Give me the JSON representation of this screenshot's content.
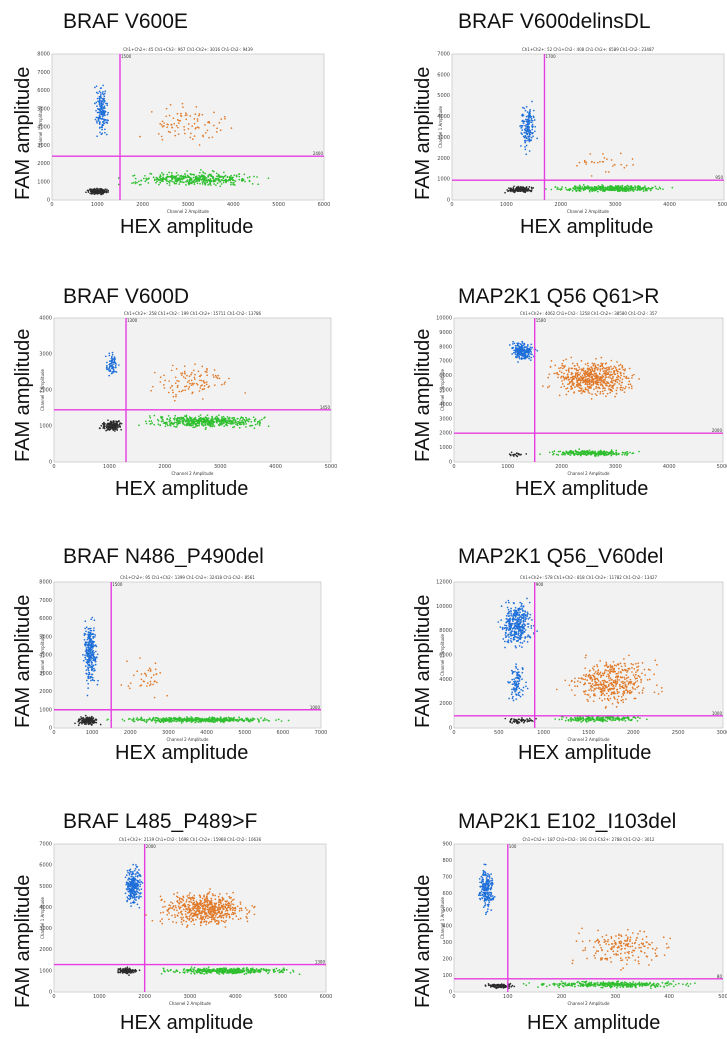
{
  "colors": {
    "double_neg": "#2b2b2b",
    "fam_pos": "#1e6fd9",
    "hex_pos": "#2fbf2f",
    "double_pos": "#e07a2a",
    "threshold": "#e63ce0",
    "plot_bg": "#f2f2f2"
  },
  "chart_data": [
    {
      "type": "scatter",
      "title": "BRAF V600E",
      "xlabel": "HEX amplitude",
      "ylabel": "FAM amplitude",
      "inner_header": "Ch1+Ch2+: 45  Ch1+Ch2-: 967  Ch1-Ch2+: 3016  Ch1-Ch2-: 9439",
      "inner_xlabel": "Channel 2 Amplitude",
      "inner_ylabel": "Channel 1 Amplitude",
      "xlim": [
        0,
        6000
      ],
      "ylim": [
        0,
        8000
      ],
      "xticks": [
        0,
        1000,
        2000,
        3000,
        4000,
        5000,
        6000
      ],
      "yticks": [
        0,
        1000,
        2000,
        3000,
        4000,
        5000,
        6000,
        7000,
        8000
      ],
      "ythreshold": 2400,
      "xthreshold": 1500,
      "ythreshold_label": "2400",
      "xthreshold_label": "1500",
      "clusters": [
        {
          "name": "Ch1-Ch2-",
          "color": "double_neg",
          "x": [
            700,
            1300
          ],
          "y": [
            250,
            700
          ],
          "n": 160
        },
        {
          "name": "Ch1+Ch2-",
          "color": "fam_pos",
          "x": [
            900,
            1300
          ],
          "y": [
            3000,
            6800
          ],
          "n": 160
        },
        {
          "name": "Ch1-Ch2+",
          "color": "hex_pos",
          "x": [
            1300,
            5000
          ],
          "y": [
            600,
            1700
          ],
          "n": 420
        },
        {
          "name": "Ch1+Ch2+",
          "color": "double_pos",
          "x": [
            1800,
            4200
          ],
          "y": [
            2800,
            5500
          ],
          "n": 90
        }
      ]
    },
    {
      "type": "scatter",
      "title": "BRAF V600delinsDL",
      "xlabel": "HEX amplitude",
      "ylabel": "FAM amplitude",
      "inner_header": "Ch1+Ch2+: 52  Ch1+Ch2-: 408  Ch1-Ch2+: 6589  Ch1-Ch2-: 23487",
      "inner_xlabel": "Channel 2 Amplitude",
      "inner_ylabel": "Channel 1 Amplitude",
      "xlim": [
        0,
        5000
      ],
      "ylim": [
        0,
        7000
      ],
      "xticks": [
        0,
        1000,
        2000,
        3000,
        4000,
        5000
      ],
      "yticks": [
        0,
        1000,
        2000,
        3000,
        4000,
        5000,
        6000,
        7000
      ],
      "ythreshold": 950,
      "xthreshold": 1700,
      "ythreshold_label": "950",
      "xthreshold_label": "1700",
      "clusters": [
        {
          "name": "Ch1-Ch2-",
          "color": "double_neg",
          "x": [
            900,
            1600
          ],
          "y": [
            300,
            700
          ],
          "n": 150
        },
        {
          "name": "Ch1+Ch2-",
          "color": "fam_pos",
          "x": [
            1200,
            1600
          ],
          "y": [
            2000,
            5000
          ],
          "n": 150
        },
        {
          "name": "Ch1-Ch2+",
          "color": "hex_pos",
          "x": [
            1600,
            4200
          ],
          "y": [
            350,
            750
          ],
          "n": 420
        },
        {
          "name": "Ch1+Ch2+",
          "color": "double_pos",
          "x": [
            1900,
            3600
          ],
          "y": [
            1000,
            2500
          ],
          "n": 30
        }
      ]
    },
    {
      "type": "scatter",
      "title": "BRAF V600D",
      "xlabel": "HEX amplitude",
      "ylabel": "FAM amplitude",
      "inner_header": "Ch1+Ch2+: 258  Ch1+Ch2-: 199  Ch1-Ch2+: 15711  Ch1-Ch2-: 13786",
      "inner_xlabel": "Channel 2 Amplitude",
      "inner_ylabel": "Channel 1 Amplitude",
      "xlim": [
        0,
        5000
      ],
      "ylim": [
        0,
        4000
      ],
      "xticks": [
        0,
        1000,
        2000,
        3000,
        4000,
        5000
      ],
      "yticks": [
        0,
        1000,
        2000,
        3000,
        4000
      ],
      "ythreshold": 1450,
      "xthreshold": 1300,
      "ythreshold_label": "1450",
      "xthreshold_label": "1300",
      "clusters": [
        {
          "name": "Ch1-Ch2-",
          "color": "double_neg",
          "x": [
            800,
            1300
          ],
          "y": [
            800,
            1200
          ],
          "n": 160
        },
        {
          "name": "Ch1+Ch2-",
          "color": "fam_pos",
          "x": [
            900,
            1200
          ],
          "y": [
            2200,
            3200
          ],
          "n": 70
        },
        {
          "name": "Ch1-Ch2+",
          "color": "hex_pos",
          "x": [
            1300,
            4200
          ],
          "y": [
            900,
            1350
          ],
          "n": 500
        },
        {
          "name": "Ch1+Ch2+",
          "color": "double_pos",
          "x": [
            1500,
            3500
          ],
          "y": [
            1500,
            3000
          ],
          "n": 110
        }
      ]
    },
    {
      "type": "scatter",
      "title": "MAP2K1 Q56  Q61>R",
      "xlabel": "HEX amplitude",
      "ylabel": "FAM amplitude",
      "inner_header": "Ch1+Ch2+: 4062  Ch1+Ch2-: 1258  Ch1-Ch2+: 38580  Ch1-Ch2-: 357",
      "inner_xlabel": "Channel 2 Amplitude",
      "inner_ylabel": "Channel 1 Amplitude",
      "xlim": [
        0,
        5000
      ],
      "ylim": [
        0,
        10000
      ],
      "xticks": [
        0,
        1000,
        2000,
        3000,
        4000,
        5000
      ],
      "yticks": [
        0,
        1000,
        2000,
        3000,
        4000,
        5000,
        6000,
        7000,
        8000,
        9000,
        10000
      ],
      "ythreshold": 2000,
      "xthreshold": 1500,
      "ythreshold_label": "2000",
      "xthreshold_label": "1500",
      "clusters": [
        {
          "name": "Ch1+Ch2-",
          "color": "fam_pos",
          "x": [
            1000,
            1550
          ],
          "y": [
            6800,
            8600
          ],
          "n": 220
        },
        {
          "name": "Ch1+Ch2+",
          "color": "double_pos",
          "x": [
            1550,
            3600
          ],
          "y": [
            4200,
            7600
          ],
          "n": 600
        },
        {
          "name": "Ch1-Ch2+",
          "color": "hex_pos",
          "x": [
            1500,
            3600
          ],
          "y": [
            350,
            900
          ],
          "n": 280
        },
        {
          "name": "Ch1-Ch2-",
          "color": "double_neg",
          "x": [
            900,
            1400
          ],
          "y": [
            300,
            700
          ],
          "n": 20
        }
      ]
    },
    {
      "type": "scatter",
      "title": "BRAF N486_P490del",
      "xlabel": "HEX amplitude",
      "ylabel": "FAM amplitude",
      "inner_header": "Ch1+Ch2+: 95  Ch1+Ch2-: 1399  Ch1-Ch2+: 32418  Ch1-Ch2-: 8561",
      "inner_xlabel": "Channel 2 Amplitude",
      "inner_ylabel": "Channel 1 Amplitude",
      "xlim": [
        0,
        7000
      ],
      "ylim": [
        0,
        8000
      ],
      "xticks": [
        0,
        1000,
        2000,
        3000,
        4000,
        5000,
        6000,
        7000
      ],
      "yticks": [
        0,
        1000,
        2000,
        3000,
        4000,
        5000,
        6000,
        7000,
        8000
      ],
      "ythreshold": 1000,
      "xthreshold": 1500,
      "ythreshold_label": "1000",
      "xthreshold_label": "1500",
      "clusters": [
        {
          "name": "Ch1-Ch2-",
          "color": "double_neg",
          "x": [
            500,
            1300
          ],
          "y": [
            100,
            700
          ],
          "n": 160
        },
        {
          "name": "Ch1+Ch2-",
          "color": "fam_pos",
          "x": [
            700,
            1200
          ],
          "y": [
            1500,
            6800
          ],
          "n": 260
        },
        {
          "name": "Ch1-Ch2+",
          "color": "hex_pos",
          "x": [
            1000,
            6600
          ],
          "y": [
            250,
            650
          ],
          "n": 500
        },
        {
          "name": "Ch1+Ch2+",
          "color": "double_pos",
          "x": [
            1600,
            3200
          ],
          "y": [
            1300,
            4200
          ],
          "n": 40
        }
      ]
    },
    {
      "type": "scatter",
      "title": "MAP2K1 Q56_V60del",
      "xlabel": "HEX amplitude",
      "ylabel": "FAM amplitude",
      "inner_header": "Ch1+Ch2+: 578  Ch1+Ch2-: 818  Ch1-Ch2+: 11782  Ch1-Ch2-: 13427",
      "inner_xlabel": "Channel 2 Amplitude",
      "inner_ylabel": "Channel 1 Amplitude",
      "xlim": [
        0,
        3000
      ],
      "ylim": [
        0,
        12000
      ],
      "xticks": [
        0,
        500,
        1000,
        1500,
        2000,
        2500,
        3000
      ],
      "yticks": [
        0,
        2000,
        4000,
        6000,
        8000,
        10000,
        12000
      ],
      "ythreshold": 1000,
      "xthreshold": 900,
      "ythreshold_label": "1000",
      "xthreshold_label": "900",
      "clusters": [
        {
          "name": "Ch1+Ch2-",
          "color": "fam_pos",
          "x": [
            450,
            950
          ],
          "y": [
            6000,
            11000
          ],
          "n": 350
        },
        {
          "name": "Ch1+Ch2-",
          "color": "fam_pos",
          "x": [
            550,
            850
          ],
          "y": [
            1500,
            6000
          ],
          "n": 100
        },
        {
          "name": "Ch1+Ch2+",
          "color": "double_pos",
          "x": [
            1100,
            2400
          ],
          "y": [
            1200,
            6500
          ],
          "n": 420
        },
        {
          "name": "Ch1-Ch2+",
          "color": "hex_pos",
          "x": [
            950,
            2300
          ],
          "y": [
            400,
            1100
          ],
          "n": 200
        },
        {
          "name": "Ch1-Ch2-",
          "color": "double_neg",
          "x": [
            500,
            950
          ],
          "y": [
            300,
            900
          ],
          "n": 60
        }
      ]
    },
    {
      "type": "scatter",
      "title": "BRAF L485_P489>F",
      "xlabel": "HEX amplitude",
      "ylabel": "FAM amplitude",
      "inner_header": "Ch1+Ch2+: 2139  Ch1+Ch2-: 1698  Ch1-Ch2+: 15968  Ch1-Ch2-: 10636",
      "inner_xlabel": "Channel 2 Amplitude",
      "inner_ylabel": "Channel 1 Amplitude",
      "xlim": [
        0,
        6000
      ],
      "ylim": [
        0,
        7000
      ],
      "xticks": [
        0,
        1000,
        2000,
        3000,
        4000,
        5000,
        6000
      ],
      "yticks": [
        0,
        1000,
        2000,
        3000,
        4000,
        5000,
        6000,
        7000
      ],
      "ythreshold": 1300,
      "xthreshold": 2000,
      "ythreshold_label": "1300",
      "xthreshold_label": "2000",
      "clusters": [
        {
          "name": "Ch1-Ch2-",
          "color": "double_neg",
          "x": [
            1300,
            1900
          ],
          "y": [
            800,
            1200
          ],
          "n": 120
        },
        {
          "name": "Ch1+Ch2-",
          "color": "fam_pos",
          "x": [
            1500,
            2000
          ],
          "y": [
            3800,
            6200
          ],
          "n": 260
        },
        {
          "name": "Ch1+Ch2+",
          "color": "double_pos",
          "x": [
            2000,
            4600
          ],
          "y": [
            2800,
            5000
          ],
          "n": 600
        },
        {
          "name": "Ch1-Ch2+",
          "color": "hex_pos",
          "x": [
            2000,
            5600
          ],
          "y": [
            800,
            1200
          ],
          "n": 420
        }
      ]
    },
    {
      "type": "scatter",
      "title": "MAP2K1 E102_I103del",
      "xlabel": "HEX amplitude",
      "ylabel": "FAM amplitude",
      "inner_header": "Ch1+Ch2+: 187  Ch1+Ch2-: 191  Ch1-Ch2+: 2788  Ch1-Ch2-: 3012",
      "inner_xlabel": "Channel 2 Amplitude",
      "inner_ylabel": "Channel 1 Amplitude",
      "xlim": [
        0,
        500
      ],
      "ylim": [
        0,
        900
      ],
      "xticks": [
        0,
        100,
        200,
        300,
        400,
        500
      ],
      "yticks": [
        0,
        100,
        200,
        300,
        400,
        500,
        600,
        700,
        800,
        900
      ],
      "ythreshold": 80,
      "xthreshold": 100,
      "ythreshold_label": "80",
      "xthreshold_label": "100",
      "clusters": [
        {
          "name": "Ch1+Ch2-",
          "color": "fam_pos",
          "x": [
            40,
            80
          ],
          "y": [
            450,
            800
          ],
          "n": 220
        },
        {
          "name": "Ch1-Ch2-",
          "color": "double_neg",
          "x": [
            50,
            120
          ],
          "y": [
            20,
            55
          ],
          "n": 120
        },
        {
          "name": "Ch1-Ch2+",
          "color": "hex_pos",
          "x": [
            100,
            480
          ],
          "y": [
            20,
            70
          ],
          "n": 380
        },
        {
          "name": "Ch1+Ch2+",
          "color": "double_pos",
          "x": [
            200,
            420
          ],
          "y": [
            120,
            420
          ],
          "n": 180
        }
      ]
    }
  ]
}
